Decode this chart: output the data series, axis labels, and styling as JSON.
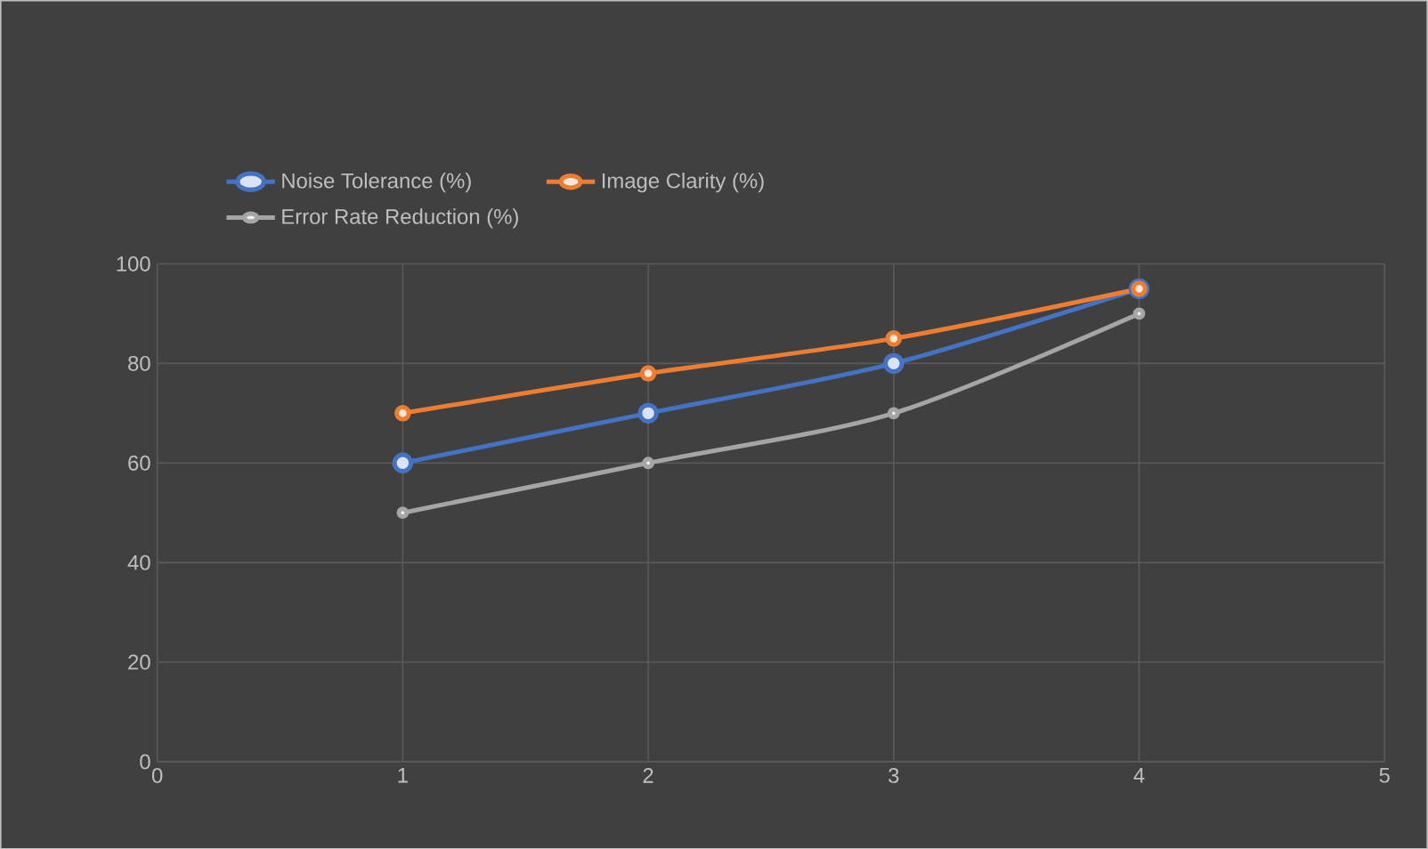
{
  "chart_data": {
    "type": "line",
    "x": [
      1,
      2,
      3,
      4
    ],
    "series": [
      {
        "name": "Noise Tolerance (%)",
        "color": "#4472c4",
        "values": [
          60,
          70,
          80,
          95
        ]
      },
      {
        "name": "Image Clarity (%)",
        "color": "#ed7d31",
        "values": [
          70,
          78,
          85,
          95
        ]
      },
      {
        "name": "Error Rate Reduction (%)",
        "color": "#a5a5a5",
        "values": [
          50,
          60,
          70,
          90
        ]
      }
    ],
    "xlim": [
      0,
      5
    ],
    "xticks": [
      0,
      1,
      2,
      3,
      4,
      5
    ],
    "ylim": [
      0,
      100
    ],
    "yticks": [
      0,
      20,
      40,
      60,
      80,
      100
    ],
    "grid": true,
    "legend": "top",
    "marker": "circle",
    "line_style": "solid"
  }
}
